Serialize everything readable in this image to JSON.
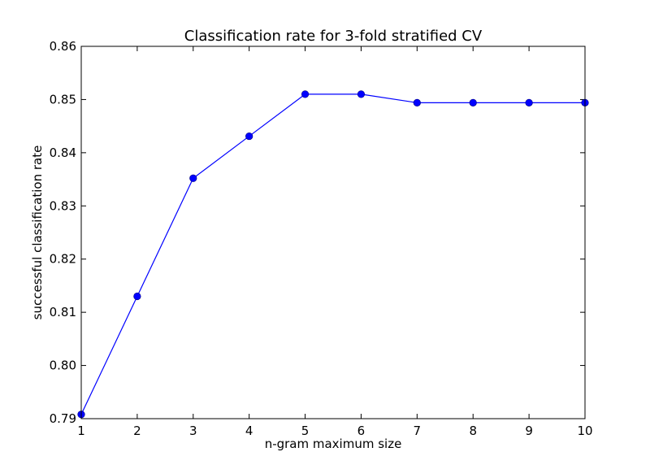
{
  "chart_data": {
    "type": "line",
    "title": "Classification rate for 3-fold stratified CV",
    "xlabel": "n-gram maximum size",
    "ylabel": "successful classification rate",
    "xlim": [
      1,
      10
    ],
    "ylim": [
      0.79,
      0.86
    ],
    "xticks": [
      1,
      2,
      3,
      4,
      5,
      6,
      7,
      8,
      9,
      10
    ],
    "xtick_labels": [
      "1",
      "2",
      "3",
      "4",
      "5",
      "6",
      "7",
      "8",
      "9",
      "10"
    ],
    "yticks": [
      0.79,
      0.8,
      0.81,
      0.82,
      0.83,
      0.84,
      0.85,
      0.86
    ],
    "ytick_labels": [
      "0.79",
      "0.80",
      "0.81",
      "0.82",
      "0.83",
      "0.84",
      "0.85",
      "0.86"
    ],
    "grid": false,
    "legend": "none",
    "series": [
      {
        "color": "#0000ff",
        "marker": "circle",
        "x": [
          1,
          2,
          3,
          4,
          5,
          6,
          7,
          8,
          9,
          10
        ],
        "y": [
          0.7908,
          0.813,
          0.8352,
          0.8431,
          0.851,
          0.851,
          0.8494,
          0.8494,
          0.8494,
          0.8494
        ]
      }
    ]
  }
}
